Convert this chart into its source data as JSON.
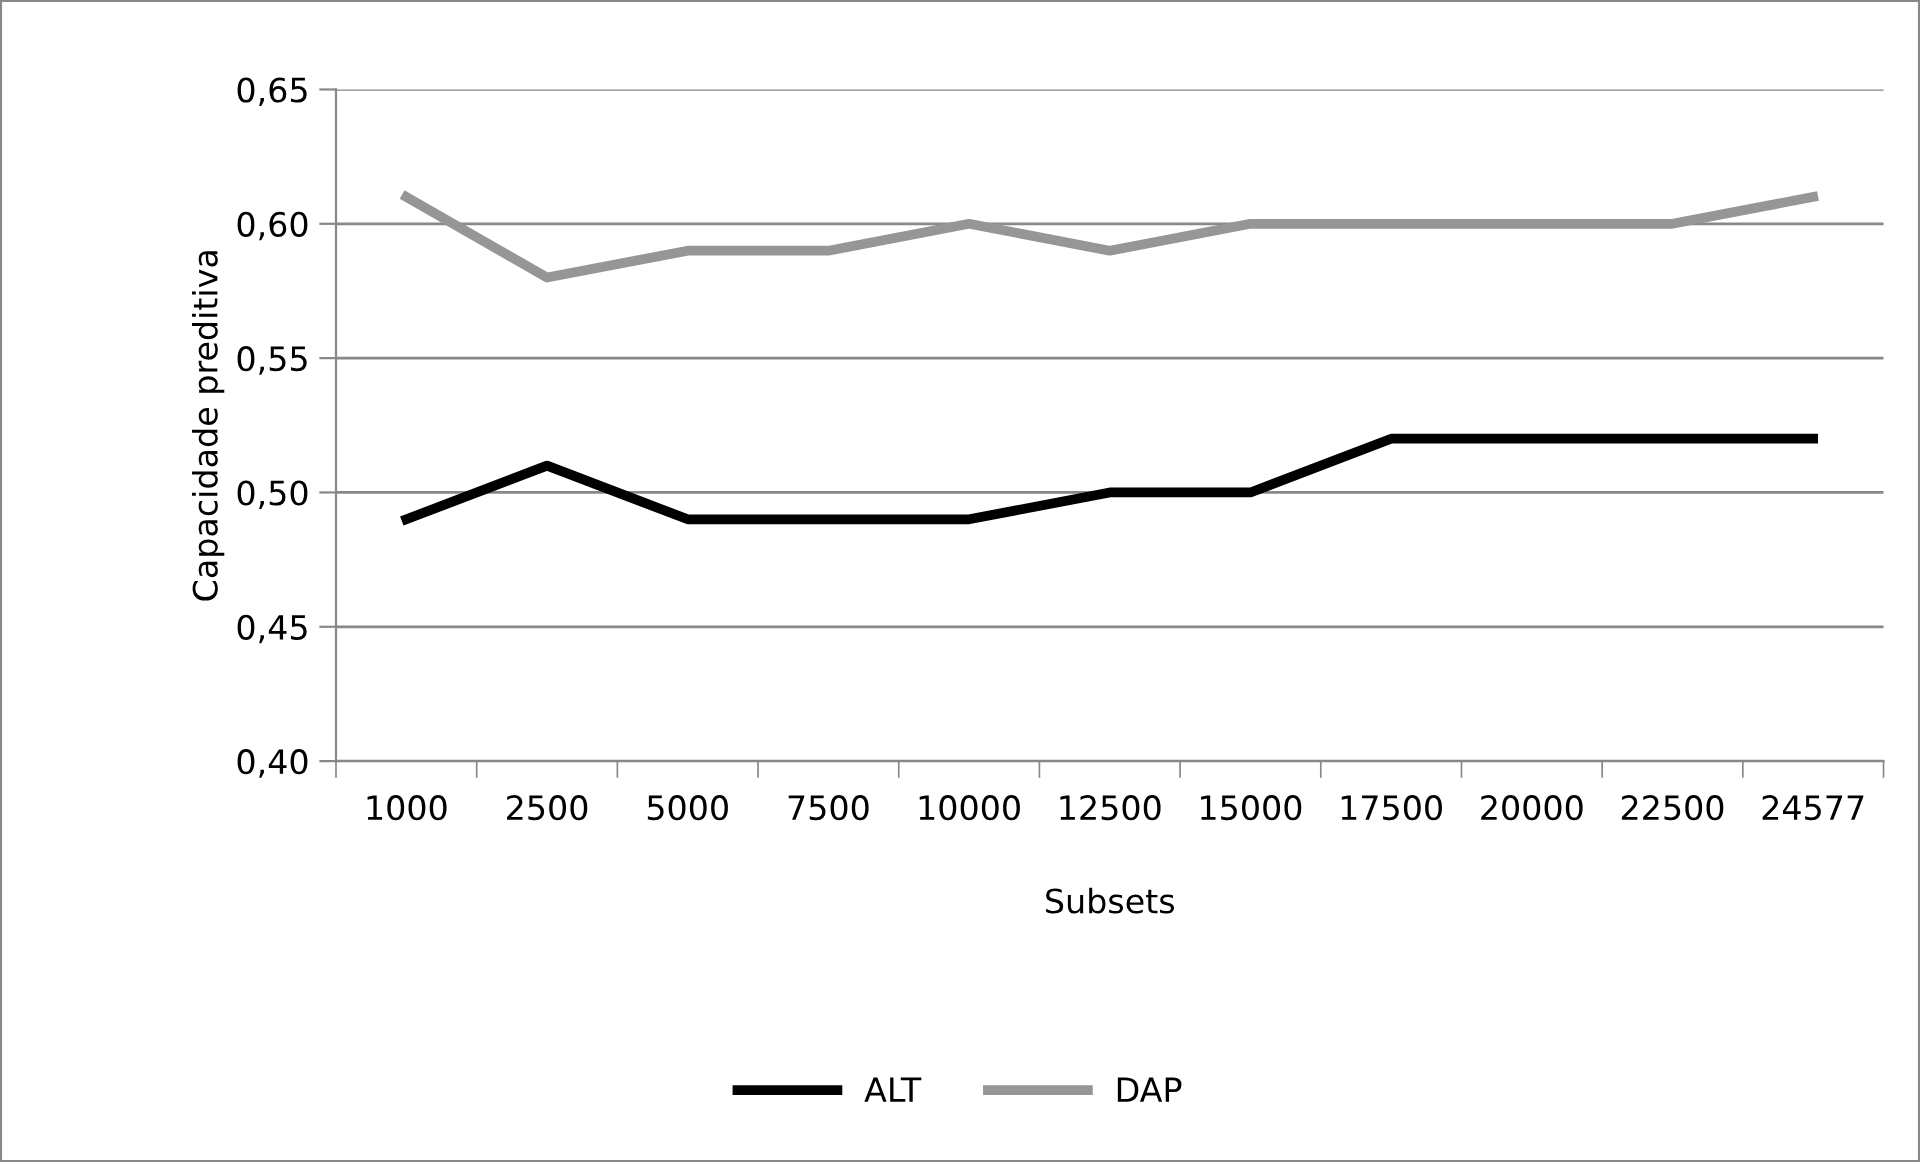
{
  "chart_data": {
    "type": "line",
    "xlabel": "Subsets",
    "ylabel": "Capacidade preditiva",
    "categories": [
      "1000",
      "2500",
      "5000",
      "7500",
      "10000",
      "12500",
      "15000",
      "17500",
      "20000",
      "22500",
      "24577"
    ],
    "series": [
      {
        "name": "ALT",
        "color": "#000000",
        "values": [
          0.49,
          0.51,
          0.49,
          0.49,
          0.49,
          0.5,
          0.5,
          0.52,
          0.52,
          0.52,
          0.52
        ]
      },
      {
        "name": "DAP",
        "color": "#969696",
        "values": [
          0.61,
          0.58,
          0.59,
          0.59,
          0.6,
          0.59,
          0.6,
          0.6,
          0.6,
          0.6,
          0.61
        ]
      }
    ],
    "ylim": [
      0.4,
      0.65
    ],
    "yticks": [
      {
        "value": 0.4,
        "label": "0,40"
      },
      {
        "value": 0.45,
        "label": "0,45"
      },
      {
        "value": 0.5,
        "label": "0,50"
      },
      {
        "value": 0.55,
        "label": "0,55"
      },
      {
        "value": 0.6,
        "label": "0,60"
      },
      {
        "value": 0.65,
        "label": "0,65"
      }
    ],
    "grid": "y",
    "legend": "bottom",
    "marker": "none",
    "line_style": "solid"
  }
}
